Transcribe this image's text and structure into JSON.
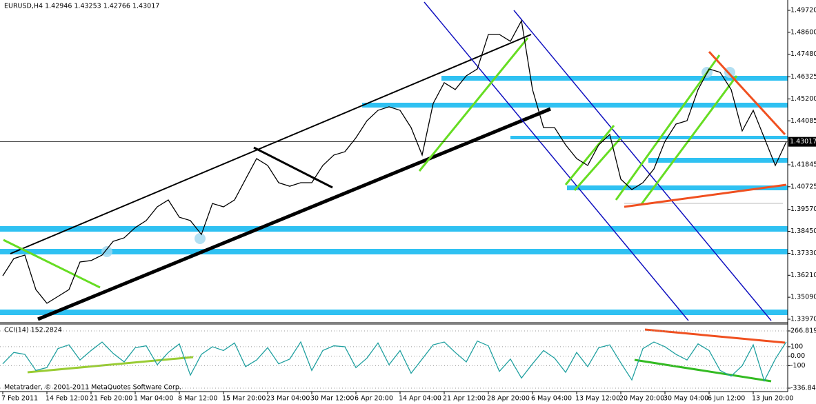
{
  "chart_data": [
    {
      "type": "line",
      "title": "EURUSD,H4  1.42946 1.43253 1.42766 1.43017",
      "categories": [
        "7 Feb 2011",
        null,
        null,
        null,
        "14 Feb 12:00",
        null,
        null,
        null,
        "21 Feb 20:00",
        null,
        null,
        null,
        "1 Mar 04:00",
        null,
        null,
        null,
        "8 Mar 12:00",
        null,
        null,
        null,
        "15 Mar 20:00",
        null,
        null,
        null,
        "23 Mar 04:00",
        null,
        null,
        null,
        "30 Mar 12:00",
        null,
        null,
        null,
        "6 Apr 20:00",
        null,
        null,
        null,
        "14 Apr 04:00",
        null,
        null,
        null,
        "21 Apr 12:00",
        null,
        null,
        null,
        "28 Apr 20:00",
        null,
        null,
        null,
        "6 May 04:00",
        null,
        null,
        null,
        "13 May 12:00",
        null,
        null,
        null,
        "20 May 20:00",
        null,
        null,
        null,
        "30 May 04:00",
        null,
        null,
        null,
        "6 Jun 12:00",
        null,
        null,
        null,
        "13 Jun 20:00",
        null,
        null,
        null
      ],
      "series": [
        {
          "name": "EURUSD,H4",
          "color": "#000000",
          "values": [
            1.3618,
            1.3706,
            1.3724,
            1.3548,
            1.3478,
            1.3513,
            1.3548,
            1.3689,
            1.3696,
            1.3724,
            1.3794,
            1.3812,
            1.3864,
            1.39,
            1.397,
            1.4005,
            1.3917,
            1.39,
            1.3829,
            1.3987,
            1.397,
            1.4005,
            1.4111,
            1.4216,
            1.4181,
            1.4093,
            1.4075,
            1.4093,
            1.4093,
            1.4181,
            1.4234,
            1.4251,
            1.4322,
            1.4409,
            1.4462,
            1.448,
            1.4462,
            1.4374,
            1.4234,
            1.4497,
            1.4603,
            1.4568,
            1.4638,
            1.4673,
            1.4849,
            1.4849,
            1.4814,
            1.4919,
            1.4568,
            1.4374,
            1.4374,
            1.4286,
            1.4216,
            1.4181,
            1.4286,
            1.4339,
            1.4111,
            1.4058,
            1.4093,
            1.4163,
            1.4304,
            1.4392,
            1.4409,
            1.4568,
            1.4673,
            1.4656,
            1.4568,
            1.4357,
            1.4462,
            1.4322,
            1.4181,
            1.43017
          ]
        }
      ],
      "last_price": 1.43017,
      "ylim": [
        1.33794,
        1.50247
      ],
      "yticks": [
        {
          "value": 1.4972,
          "label": "1.49720"
        },
        {
          "value": 1.486,
          "label": "1.48600"
        },
        {
          "value": 1.4748,
          "label": "1.47480"
        },
        1.46325,
        {
          "value": 1.452,
          "label": "1.45200"
        },
        1.44085,
        1.41845,
        1.40725,
        {
          "value": 1.3957,
          "label": "1.39570"
        },
        {
          "value": 1.3845,
          "label": "1.38450"
        },
        {
          "value": 1.3733,
          "label": "1.37330"
        },
        {
          "value": 1.3621,
          "label": "1.36210"
        },
        {
          "value": 1.3509,
          "label": "1.35090"
        },
        {
          "value": 1.3397,
          "label": "1.33970"
        }
      ]
    },
    {
      "type": "line",
      "title": "CCI(14) 152.2824",
      "series": [
        {
          "name": "CCI(14)",
          "color": "#20a0a0",
          "values": [
            -80,
            40,
            20,
            -150,
            -120,
            80,
            120,
            -40,
            60,
            150,
            30,
            -60,
            90,
            110,
            -90,
            40,
            130,
            -200,
            20,
            100,
            60,
            140,
            -110,
            -40,
            90,
            -80,
            -30,
            150,
            -150,
            60,
            110,
            100,
            -120,
            -20,
            140,
            -90,
            60,
            -180,
            -30,
            120,
            150,
            40,
            -60,
            160,
            110,
            -160,
            -30,
            -230,
            -80,
            60,
            -20,
            -170,
            40,
            -110,
            90,
            120,
            -70,
            -250,
            80,
            150,
            100,
            20,
            -40,
            130,
            60,
            -150,
            -210,
            -100,
            120,
            -260,
            -30,
            152.28
          ]
        }
      ],
      "ylim": [
        -336.845,
        266.819
      ],
      "yticks": [
        266.819,
        100,
        {
          "value": 0,
          "label": "0.00"
        },
        -100,
        -336.845
      ],
      "footer": "Metatrader, © 2001-2011 MetaQuotes Software Corp."
    }
  ]
}
